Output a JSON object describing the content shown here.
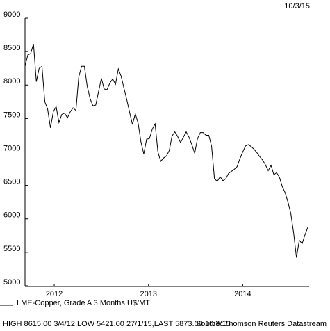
{
  "chart_data": {
    "type": "line",
    "date_label": "10/3/15",
    "footer_stats": "HIGH 8615.00 3/4/12,LOW 5421.00 27/1/15,LAST 5873.00 10/3/15",
    "source": "Source: Thomson Reuters Datastream",
    "x": [
      2012.19,
      2012.22,
      2012.25,
      2012.28,
      2012.31,
      2012.34,
      2012.37,
      2012.4,
      2012.43,
      2012.46,
      2012.49,
      2012.52,
      2012.55,
      2012.58,
      2012.61,
      2012.64,
      2012.67,
      2012.7,
      2012.73,
      2012.76,
      2012.79,
      2012.82,
      2012.85,
      2012.88,
      2012.91,
      2012.94,
      2012.97,
      2013.0,
      2013.03,
      2013.06,
      2013.09,
      2013.12,
      2013.15,
      2013.18,
      2013.21,
      2013.24,
      2013.27,
      2013.3,
      2013.33,
      2013.36,
      2013.39,
      2013.42,
      2013.45,
      2013.48,
      2013.51,
      2013.54,
      2013.57,
      2013.6,
      2013.63,
      2013.66,
      2013.69,
      2013.72,
      2013.75,
      2013.78,
      2013.81,
      2013.84,
      2013.87,
      2013.9,
      2013.93,
      2013.96,
      2013.99,
      2014.02,
      2014.05,
      2014.08,
      2014.11,
      2014.14,
      2014.17,
      2014.2,
      2014.23,
      2014.26,
      2014.29,
      2014.32,
      2014.35,
      2014.38,
      2014.41,
      2014.44,
      2014.47,
      2014.5,
      2014.53,
      2014.56,
      2014.59,
      2014.62,
      2014.65,
      2014.68,
      2014.71,
      2014.74,
      2014.77,
      2014.8,
      2014.83,
      2014.86,
      2014.89,
      2014.92,
      2014.95,
      2014.98,
      2015.01,
      2015.04,
      2015.07,
      2015.1,
      2015.13,
      2015.16,
      2015.19
    ],
    "series": [
      {
        "name": "LME-Copper, Grade A 3 Months U$/MT",
        "color": "#000000",
        "values": [
          8280,
          8450,
          8470,
          8615,
          8050,
          8250,
          8280,
          7750,
          7640,
          7360,
          7600,
          7680,
          7440,
          7560,
          7580,
          7510,
          7600,
          7660,
          7620,
          8120,
          8280,
          8280,
          7980,
          7800,
          7690,
          7700,
          7900,
          8100,
          7940,
          7930,
          8030,
          8090,
          8010,
          8240,
          8130,
          7950,
          7780,
          7590,
          7410,
          7570,
          7430,
          7150,
          6970,
          7190,
          7200,
          7340,
          7420,
          7000,
          6860,
          6910,
          6940,
          7020,
          7240,
          7300,
          7230,
          7140,
          7220,
          7300,
          7220,
          7110,
          6980,
          7200,
          7290,
          7290,
          7250,
          7250,
          7080,
          6600,
          6560,
          6630,
          6570,
          6600,
          6680,
          6710,
          6740,
          6780,
          6900,
          7000,
          7090,
          7110,
          7080,
          7040,
          6990,
          6930,
          6880,
          6810,
          6720,
          6800,
          6660,
          6690,
          6620,
          6480,
          6390,
          6250,
          6080,
          5790,
          5421,
          5680,
          5630,
          5760,
          5873
        ]
      }
    ],
    "xlim": [
      2012.19,
      2015.19
    ],
    "xticks": [
      {
        "value": 2012.5,
        "label": "2012"
      },
      {
        "value": 2013.5,
        "label": "2013"
      },
      {
        "value": 2014.5,
        "label": "2014"
      }
    ],
    "ylim": [
      5000,
      9000
    ],
    "yticks": [
      5000,
      5500,
      6000,
      6500,
      7000,
      7500,
      8000,
      8500,
      9000
    ],
    "grid": false
  }
}
